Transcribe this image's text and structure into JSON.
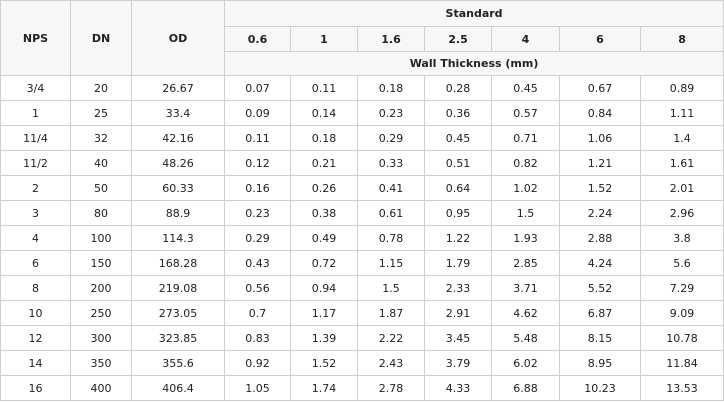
{
  "header": {
    "nps": "NPS",
    "dn": "DN",
    "od": "OD",
    "standard": "Standard",
    "pressures": [
      "0.6",
      "1",
      "1.6",
      "2.5",
      "4",
      "6",
      "8"
    ],
    "unit": "Wall Thickness (mm)"
  },
  "rows": [
    [
      "3/4",
      "20",
      "26.67",
      "0.07",
      "0.11",
      "0.18",
      "0.28",
      "0.45",
      "0.67",
      "0.89"
    ],
    [
      "1",
      "25",
      "33.4",
      "0.09",
      "0.14",
      "0.23",
      "0.36",
      "0.57",
      "0.84",
      "1.11"
    ],
    [
      "11/4",
      "32",
      "42.16",
      "0.11",
      "0.18",
      "0.29",
      "0.45",
      "0.71",
      "1.06",
      "1.4"
    ],
    [
      "11/2",
      "40",
      "48.26",
      "0.12",
      "0.21",
      "0.33",
      "0.51",
      "0.82",
      "1.21",
      "1.61"
    ],
    [
      "2",
      "50",
      "60.33",
      "0.16",
      "0.26",
      "0.41",
      "0.64",
      "1.02",
      "1.52",
      "2.01"
    ],
    [
      "3",
      "80",
      "88.9",
      "0.23",
      "0.38",
      "0.61",
      "0.95",
      "1.5",
      "2.24",
      "2.96"
    ],
    [
      "4",
      "100",
      "114.3",
      "0.29",
      "0.49",
      "0.78",
      "1.22",
      "1.93",
      "2.88",
      "3.8"
    ],
    [
      "6",
      "150",
      "168.28",
      "0.43",
      "0.72",
      "1.15",
      "1.79",
      "2.85",
      "4.24",
      "5.6"
    ],
    [
      "8",
      "200",
      "219.08",
      "0.56",
      "0.94",
      "1.5",
      "2.33",
      "3.71",
      "5.52",
      "7.29"
    ],
    [
      "10",
      "250",
      "273.05",
      "0.7",
      "1.17",
      "1.87",
      "2.91",
      "4.62",
      "6.87",
      "9.09"
    ],
    [
      "12",
      "300",
      "323.85",
      "0.83",
      "1.39",
      "2.22",
      "3.45",
      "5.48",
      "8.15",
      "10.78"
    ],
    [
      "14",
      "350",
      "355.6",
      "0.92",
      "1.52",
      "2.43",
      "3.79",
      "6.02",
      "8.95",
      "11.84"
    ],
    [
      "16",
      "400",
      "406.4",
      "1.05",
      "1.74",
      "2.78",
      "4.33",
      "6.88",
      "10.23",
      "13.53"
    ]
  ]
}
